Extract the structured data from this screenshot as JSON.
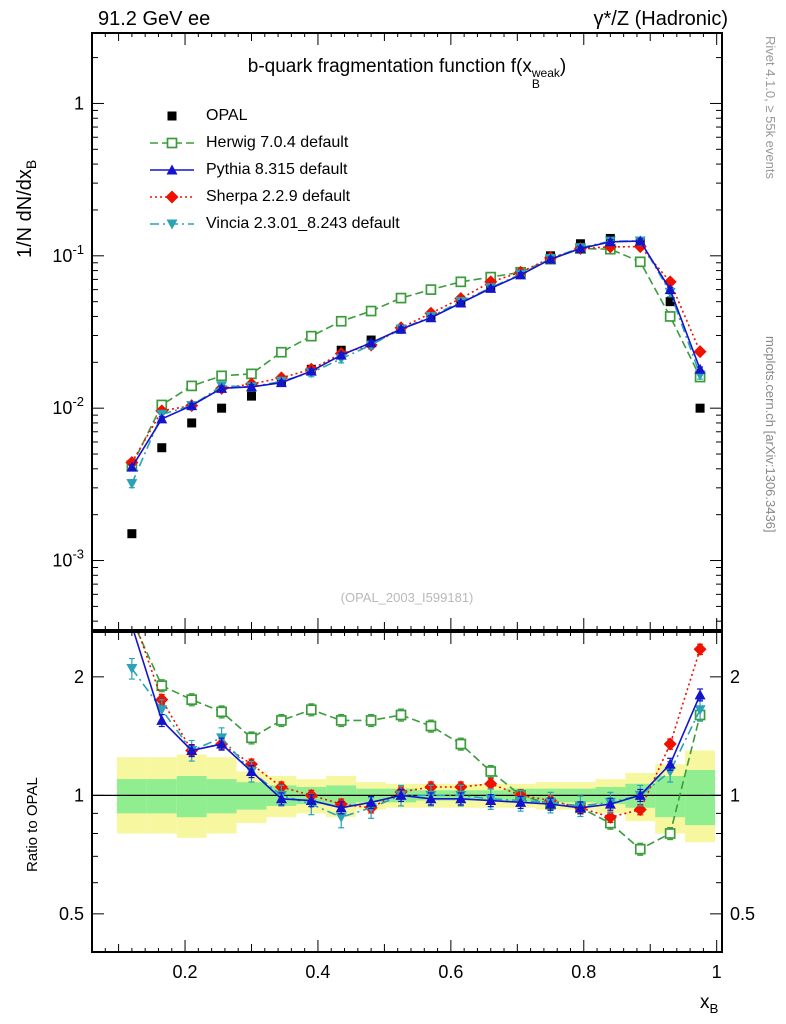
{
  "header": {
    "left": "91.2 GeV ee",
    "right": "γ*/Z (Hadronic)"
  },
  "side_notes": {
    "rivet": "Rivet 4.1.0, ≥ 55k events",
    "mcplots": "mcplots.cern.ch [arXiv:1306.3436]"
  },
  "watermark": "(OPAL_2003_I599181)",
  "labels": {
    "title_prefix": "b-quark fragmentation function f(x",
    "title_sup": "weak",
    "title_sub": "B",
    "title_suffix": ")",
    "ylabel_main_prefix": "1/N  dN/dx",
    "ylabel_main_sub": "B",
    "ylabel_ratio": "Ratio to OPAL",
    "xlabel_prefix": "x",
    "xlabel_sub": "B"
  },
  "chart_data": {
    "type": "line",
    "title": "b-quark fragmentation function f(x_B^weak)",
    "xlabel": "x_B",
    "ylabel": "1/N dN/dx_B",
    "ylabel_ratio": "Ratio to OPAL",
    "x": [
      0.12,
      0.165,
      0.21,
      0.255,
      0.3,
      0.345,
      0.39,
      0.435,
      0.48,
      0.525,
      0.57,
      0.615,
      0.66,
      0.705,
      0.75,
      0.795,
      0.84,
      0.885,
      0.93,
      0.975
    ],
    "series": [
      {
        "name": "OPAL",
        "color": "#000000",
        "marker": "square",
        "line": "none",
        "err_frac": 0.05,
        "values": [
          0.0015,
          0.0055,
          0.008,
          0.01,
          0.012,
          0.015,
          0.018,
          0.024,
          0.028,
          0.033,
          0.04,
          0.05,
          0.063,
          0.078,
          0.1,
          0.12,
          0.13,
          0.125,
          0.05,
          0.01
        ],
        "ratio": null
      },
      {
        "name": "Herwig 7.0.4 default",
        "color": "#3b9c3b",
        "marker": "square-open",
        "line": "dashed",
        "err_frac": 0.035,
        "values": [
          0.0042,
          0.0105,
          0.014,
          0.0163,
          0.0168,
          0.0233,
          0.0297,
          0.0372,
          0.0434,
          0.0528,
          0.06,
          0.0675,
          0.0725,
          0.078,
          0.095,
          0.1116,
          0.1105,
          0.0913,
          0.04,
          0.016
        ],
        "ratio": [
          2.8,
          1.9,
          1.75,
          1.63,
          1.4,
          1.55,
          1.65,
          1.55,
          1.55,
          1.6,
          1.5,
          1.35,
          1.15,
          1.0,
          0.95,
          0.93,
          0.85,
          0.73,
          0.8,
          1.6
        ]
      },
      {
        "name": "Pythia 8.315 default",
        "color": "#1414cc",
        "marker": "triangle-up",
        "line": "solid",
        "err_frac": 0.035,
        "values": [
          0.0041,
          0.0085,
          0.0104,
          0.0135,
          0.0138,
          0.0147,
          0.0175,
          0.0223,
          0.0269,
          0.033,
          0.0392,
          0.049,
          0.0611,
          0.0749,
          0.095,
          0.1116,
          0.1235,
          0.125,
          0.06,
          0.018
        ],
        "ratio": [
          2.7,
          1.55,
          1.3,
          1.35,
          1.15,
          0.98,
          0.97,
          0.93,
          0.96,
          1.0,
          0.98,
          0.98,
          0.97,
          0.96,
          0.95,
          0.93,
          0.95,
          1.0,
          1.2,
          1.8
        ]
      },
      {
        "name": "Sherpa 2.2.9 default",
        "color": "#ee1100",
        "marker": "diamond",
        "line": "dotted",
        "err_frac": 0.03,
        "values": [
          0.0044,
          0.0096,
          0.0104,
          0.0135,
          0.0144,
          0.0158,
          0.018,
          0.0228,
          0.026,
          0.0337,
          0.042,
          0.0525,
          0.0674,
          0.078,
          0.097,
          0.1116,
          0.1144,
          0.115,
          0.0675,
          0.0235
        ],
        "ratio": [
          2.9,
          1.75,
          1.3,
          1.35,
          1.2,
          1.05,
          1.0,
          0.95,
          0.93,
          1.02,
          1.05,
          1.05,
          1.07,
          1.0,
          0.97,
          0.93,
          0.88,
          0.92,
          1.35,
          2.35
        ]
      },
      {
        "name": "Vincia 2.3.01_8.243 default",
        "color": "#29a3b5",
        "marker": "triangle-down",
        "line": "dashdot",
        "err_frac": 0.06,
        "values": [
          0.0032,
          0.0091,
          0.0104,
          0.014,
          0.0138,
          0.015,
          0.0171,
          0.0211,
          0.026,
          0.033,
          0.04,
          0.05,
          0.0617,
          0.0757,
          0.096,
          0.1128,
          0.1248,
          0.125,
          0.0575,
          0.0165
        ],
        "ratio": [
          2.1,
          1.65,
          1.3,
          1.4,
          1.15,
          1.0,
          0.95,
          0.88,
          0.93,
          1.0,
          1.0,
          1.0,
          0.98,
          0.97,
          0.96,
          0.94,
          0.96,
          1.0,
          1.15,
          1.65
        ]
      }
    ],
    "bands": [
      {
        "name": "data-uncertainty-outer",
        "color": "#f7f7a0",
        "lo": [
          0.8,
          0.8,
          0.78,
          0.8,
          0.85,
          0.88,
          0.9,
          0.88,
          0.92,
          0.93,
          0.93,
          0.93,
          0.93,
          0.93,
          0.92,
          0.92,
          0.9,
          0.86,
          0.8,
          0.76
        ],
        "hi": [
          1.25,
          1.25,
          1.27,
          1.25,
          1.15,
          1.12,
          1.1,
          1.12,
          1.08,
          1.07,
          1.07,
          1.07,
          1.07,
          1.07,
          1.08,
          1.08,
          1.1,
          1.14,
          1.2,
          1.3
        ]
      },
      {
        "name": "data-uncertainty-inner",
        "color": "#90ee90",
        "lo": [
          0.9,
          0.9,
          0.88,
          0.9,
          0.92,
          0.94,
          0.95,
          0.94,
          0.96,
          0.96,
          0.97,
          0.97,
          0.97,
          0.96,
          0.96,
          0.96,
          0.95,
          0.93,
          0.88,
          0.84
        ],
        "hi": [
          1.1,
          1.1,
          1.12,
          1.1,
          1.08,
          1.06,
          1.05,
          1.06,
          1.04,
          1.04,
          1.03,
          1.03,
          1.03,
          1.04,
          1.04,
          1.04,
          1.05,
          1.07,
          1.12,
          1.16
        ]
      }
    ],
    "axes": {
      "x": {
        "min": 0.06,
        "max": 1.008,
        "major_ticks": [
          0.2,
          0.4,
          0.6,
          0.8,
          1.0
        ],
        "major_labels": [
          "0.2",
          "0.4",
          "0.6",
          "0.8",
          "1"
        ]
      },
      "y_main": {
        "scale": "log",
        "min": 0.00035,
        "max": 2.9,
        "decades": [
          0,
          -1,
          -2,
          -3
        ]
      },
      "y_ratio": {
        "scale": "log",
        "min": 0.4,
        "max": 2.6,
        "ticks": [
          0.4,
          0.5,
          0.6,
          0.7,
          0.8,
          0.9,
          1,
          2
        ],
        "labeled": [
          0.5,
          1,
          2
        ],
        "labels": [
          "0.5",
          "1",
          "2"
        ]
      }
    }
  }
}
